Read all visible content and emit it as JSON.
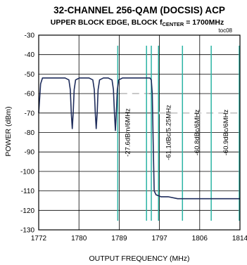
{
  "chart_data": {
    "type": "line",
    "title": "32-CHANNEL 256-QAM (DOCSIS) ACP",
    "subtitle_prefix": "UPPER BLOCK EDGE, BLOCK f",
    "subtitle_sub": "CENTER",
    "subtitle_suffix": " = 1700MHz",
    "figure_id": "toc08",
    "xlabel": "OUTPUT FREQUENCY (MHz)",
    "ylabel": "POWER (dBm)",
    "xlim": [
      1772,
      1814
    ],
    "ylim": [
      -130,
      -30
    ],
    "xticks": [
      "1772",
      "1780",
      "1789",
      "1797",
      "1806",
      "1814"
    ],
    "yticks": [
      "-30",
      "-40",
      "-50",
      "-60",
      "-70",
      "-80",
      "-90",
      "-100",
      "-110",
      "-120",
      "-130"
    ],
    "grid": true,
    "series": [
      {
        "x": [
          1772,
          1772.4,
          1772.8,
          1773.5,
          1774.5,
          1775.5,
          1776.5,
          1777.5,
          1778.3,
          1778.6,
          1778.8,
          1779.0,
          1779.2,
          1779.4,
          1779.7,
          1780.5,
          1781.5,
          1782.5,
          1783.3,
          1783.6,
          1783.8,
          1784.0,
          1784.2,
          1784.4,
          1784.7,
          1785.5,
          1786.5,
          1787.3,
          1787.6,
          1787.8,
          1788.0,
          1788.2,
          1788.4,
          1788.7,
          1789.5,
          1790.5,
          1791.5,
          1792.5,
          1793.5,
          1794.5,
          1795.2,
          1795.5,
          1795.7,
          1795.9,
          1796.1,
          1796.5,
          1797.5,
          1799,
          1801,
          1803,
          1805,
          1807,
          1809,
          1811,
          1813,
          1814
        ],
        "y": [
          -70,
          -55,
          -52,
          -52,
          -52,
          -52,
          -52,
          -52,
          -53,
          -58,
          -70,
          -78,
          -70,
          -58,
          -53,
          -52,
          -52,
          -52,
          -53,
          -58,
          -70,
          -78,
          -70,
          -58,
          -53,
          -52,
          -52,
          -53,
          -58,
          -70,
          -79,
          -70,
          -58,
          -53,
          -52,
          -52,
          -52,
          -52,
          -52,
          -52,
          -52,
          -53,
          -60,
          -85,
          -110,
          -112,
          -113,
          -113,
          -114,
          -114,
          -114,
          -114,
          -114,
          -114,
          -114,
          -114
        ]
      }
    ],
    "annotations": [
      {
        "text": "-27.6dBm/6MHz",
        "x": 1791,
        "y": -80
      },
      {
        "text": "-61.1dBc/5.25MHz",
        "x": 1799.5,
        "y": -80
      },
      {
        "text": "-60.8dBc/6MHz",
        "x": 1805.5,
        "y": -80
      },
      {
        "text": "-60.9dBc/6MHz",
        "x": 1811.5,
        "y": -80
      }
    ],
    "markers": [
      1788.5,
      1794.5,
      1795.5,
      1797,
      1802,
      1808,
      1814
    ],
    "ref_dashes": [
      {
        "x1": 1789,
        "x2": 1795,
        "y": -60
      },
      {
        "x1": 1797,
        "x2": 1814,
        "y": -70
      }
    ],
    "colors": {
      "trace": "#1f2d5c",
      "marker": "#2bb4a5",
      "dash": "#a8a8a8",
      "grid": "#000000"
    }
  }
}
